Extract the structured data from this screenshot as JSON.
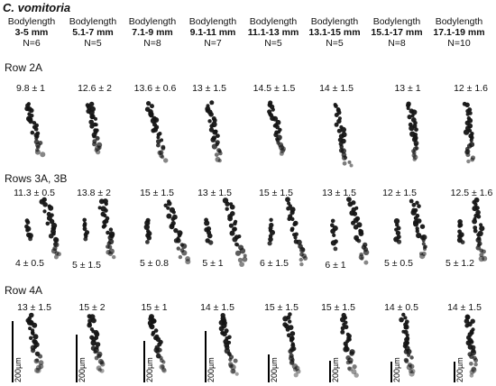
{
  "figure": {
    "title": "C. vomitoria",
    "columns": [
      {
        "label": "Bodylength",
        "range": "3-5 mm",
        "n": "N=6"
      },
      {
        "label": "Bodylength",
        "range": "5.1-7 mm",
        "n": "N=5"
      },
      {
        "label": "Bodylength",
        "range": "7.1-9 mm",
        "n": "N=8"
      },
      {
        "label": "Bodylength",
        "range": "9.1-11 mm",
        "n": "N=7"
      },
      {
        "label": "Bodylength",
        "range": "11.1-13 mm",
        "n": "N=5"
      },
      {
        "label": "Bodylength",
        "range": "13.1-15 mm",
        "n": "N=5"
      },
      {
        "label": "Bodylength",
        "range": "15.1-17 mm",
        "n": "N=8"
      },
      {
        "label": "Bodylength",
        "range": "17.1-19 mm",
        "n": "N=10"
      }
    ],
    "rows": [
      {
        "label": "Row 2A",
        "values": [
          "9.8 ± 1",
          "12.6 ± 2",
          "13.6 ± 0.6",
          "13 ± 1.5",
          "14.5 ± 1.5",
          "14 ± 1.5",
          "13 ± 1",
          "12 ± 1.6"
        ]
      },
      {
        "label": "Rows 3A, 3B",
        "values": [
          "11.3 ± 0.5",
          "13.8 ± 2",
          "15 ± 1.5",
          "13 ± 1.5",
          "15 ± 1.5",
          "13 ± 1.5",
          "12 ± 1.5",
          "12.5 ± 1.6"
        ],
        "lower_values": [
          "4 ± 0.5",
          "5 ± 1.5",
          "5 ± 0.8",
          "5 ± 1",
          "6 ± 1.5",
          "6 ± 1",
          "5 ± 0.5",
          "5 ± 1.2"
        ]
      },
      {
        "label": "Row 4A",
        "values": [
          "13 ± 1.5",
          "15 ± 2",
          "15 ± 1",
          "14 ± 1.5",
          "15 ± 1.5",
          "15 ± 1.5",
          "14 ± 0.5",
          "14 ± 1.5"
        ]
      }
    ],
    "scalebar_label": "200µm"
  }
}
